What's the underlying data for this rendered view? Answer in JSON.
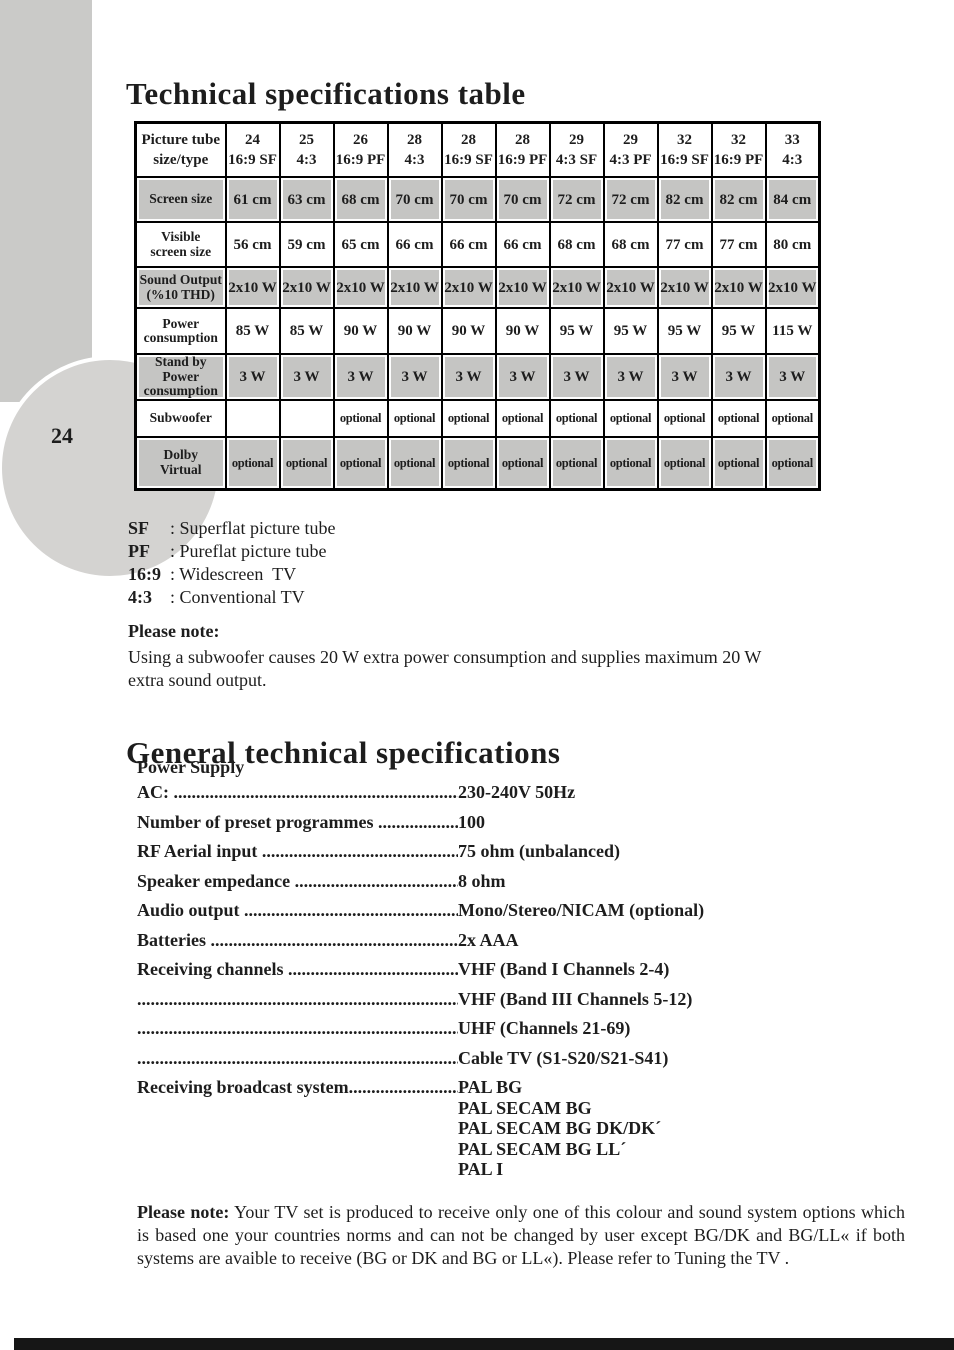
{
  "page": {
    "number": "24",
    "title": "Technical specifications table",
    "section2_title": "General technical specifications"
  },
  "colors": {
    "shaded_row": "#c5c5c3",
    "sidebar_gray": "#cacac8",
    "circle_gray": "#d4d3d1",
    "bottom_bar": "#161616"
  },
  "spec_table": {
    "header": {
      "label_lines": [
        "Picture tube",
        "size/type"
      ]
    },
    "columns": [
      {
        "size": "24",
        "type": "16:9 SF"
      },
      {
        "size": "25",
        "type": "4:3"
      },
      {
        "size": "26",
        "type": "16:9 PF"
      },
      {
        "size": "28",
        "type": "4:3"
      },
      {
        "size": "28",
        "type": "16:9 SF"
      },
      {
        "size": "28",
        "type": "16:9 PF"
      },
      {
        "size": "29",
        "type": "4:3 SF"
      },
      {
        "size": "29",
        "type": "4:3 PF"
      },
      {
        "size": "32",
        "type": "16:9 SF"
      },
      {
        "size": "32",
        "type": "16:9 PF"
      },
      {
        "size": "33",
        "type": "4:3"
      }
    ],
    "rows": [
      {
        "label_lines": [
          "Screen size"
        ],
        "shaded": true,
        "values": [
          "61 cm",
          "63 cm",
          "68 cm",
          "70 cm",
          "70 cm",
          "70 cm",
          "72 cm",
          "72 cm",
          "82 cm",
          "82 cm",
          "84 cm"
        ]
      },
      {
        "label_lines": [
          "Visible",
          "screen size"
        ],
        "shaded": false,
        "values": [
          "56 cm",
          "59 cm",
          "65 cm",
          "66 cm",
          "66 cm",
          "66 cm",
          "68 cm",
          "68 cm",
          "77 cm",
          "77 cm",
          "80 cm"
        ]
      },
      {
        "label_lines": [
          "Sound Output",
          "(%10 THD)"
        ],
        "shaded": true,
        "values": [
          "2x10 W",
          "2x10 W",
          "2x10 W",
          "2x10 W",
          "2x10 W",
          "2x10 W",
          "2x10 W",
          "2x10 W",
          "2x10 W",
          "2x10 W",
          "2x10 W"
        ]
      },
      {
        "label_lines": [
          "Power",
          "consumption"
        ],
        "shaded": false,
        "values": [
          "85 W",
          "85 W",
          "90 W",
          "90 W",
          "90 W",
          "90 W",
          "95 W",
          "95 W",
          "95 W",
          "95 W",
          "115 W"
        ]
      },
      {
        "label_lines": [
          "Stand by",
          "Power",
          "consumption"
        ],
        "shaded": true,
        "values": [
          "3 W",
          "3 W",
          "3 W",
          "3 W",
          "3 W",
          "3 W",
          "3 W",
          "3 W",
          "3 W",
          "3 W",
          "3 W"
        ]
      },
      {
        "label_lines": [
          "Subwoofer"
        ],
        "shaded": false,
        "values": [
          "",
          "",
          "optional",
          "optional",
          "optional",
          "optional",
          "optional",
          "optional",
          "optional",
          "optional",
          "optional"
        ]
      },
      {
        "label_lines": [
          "Dolby",
          "Virtual"
        ],
        "shaded": true,
        "values": [
          "optional",
          "optional",
          "optional",
          "optional",
          "optional",
          "optional",
          "optional",
          "optional",
          "optional",
          "optional",
          "optional"
        ]
      }
    ]
  },
  "legend": [
    {
      "term": "SF",
      "desc": ": Superflat picture tube"
    },
    {
      "term": "PF",
      "desc": ": Pureflat picture tube"
    },
    {
      "term": "16:9",
      "desc": ": Widescreen  TV"
    },
    {
      "term": "4:3",
      "desc": ": Conventional TV"
    }
  ],
  "note1": {
    "heading": "Please note:",
    "body": "Using a subwoofer causes 20 W extra power consumption and supplies maximum 20 W\nextra sound output."
  },
  "general_specs": {
    "items": [
      {
        "label": "Power Supply",
        "group": true
      },
      {
        "label": "AC: ....................................................................................",
        "value": "230-240V 50Hz"
      },
      {
        "label": "Number of preset programmes ....................................................",
        "value": "100"
      },
      {
        "label": "RF Aerial input  ...........................................................................",
        "value": "75 ohm (unbalanced)"
      },
      {
        "label": "Speaker empedance .....................................................................",
        "value": "8 ohm"
      },
      {
        "label": "Audio output  ..............................................................................",
        "value": "Mono/Stereo/NICAM (optional)"
      },
      {
        "label": "Batteries ......................................................................................",
        "value": "2x AAA"
      },
      {
        "label": "Receiving channels ......................................................................",
        "value": "VHF (Band I Channels 2-4)"
      },
      {
        "label": "....................................................................................................",
        "value": "VHF (Band III Channels 5-12)"
      },
      {
        "label": "....................................................................................................",
        "value": "UHF (Channels 21-69)"
      },
      {
        "label": "....................................................................................................",
        "value": "Cable TV (S1-S20/S21-S41)"
      },
      {
        "label": "Receiving broadcast system..........................................................",
        "values": [
          "PAL BG",
          "PAL SECAM BG",
          "PAL SECAM BG DK/DK´",
          "PAL SECAM BG LL´",
          "PAL I"
        ]
      }
    ]
  },
  "note2": {
    "heading": "Please note:",
    "body": "Your TV set is produced to receive only  one  of this colour  and sound system options which is based one your countries norms and can not be changed by user except BG/DK and BG/LL« if both systems are avaible to receive (BG or DK and BG or LL«). Please refer to  Tuning the TV ."
  }
}
